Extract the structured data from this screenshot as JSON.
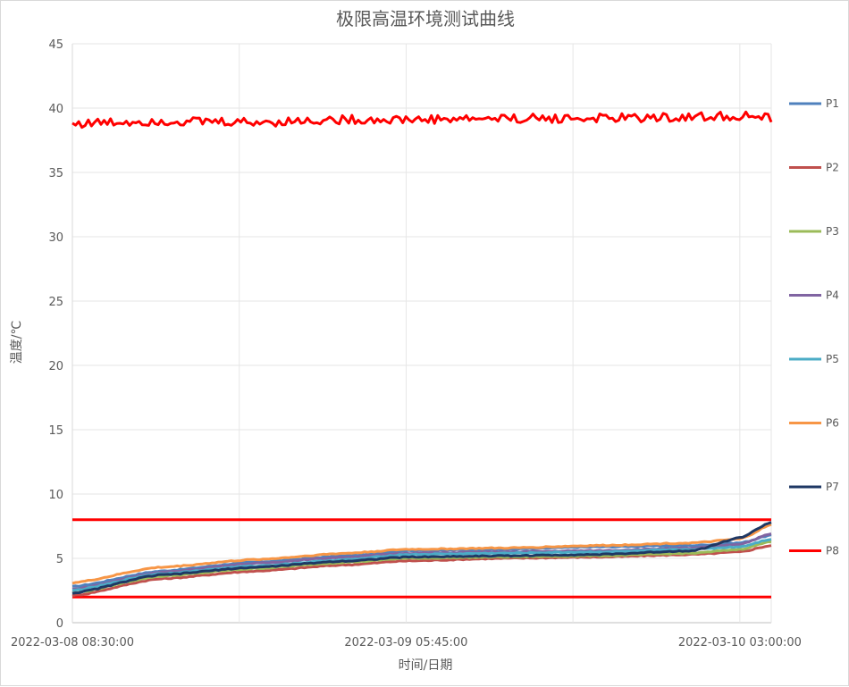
{
  "chart_data": {
    "type": "line",
    "title": "极限高温环境测试曲线",
    "xlabel": "时间/日期",
    "ylabel": "温度/℃",
    "ylim": [
      0,
      45
    ],
    "yticks": [
      0,
      5,
      10,
      15,
      20,
      25,
      30,
      35,
      40,
      45
    ],
    "xlim": [
      "2022-03-08 08:30:00",
      "2022-03-10 05:00:00"
    ],
    "xticks": [
      "2022-03-08 08:30:00",
      "2022-03-09 05:45:00",
      "2022-03-10 03:00:00"
    ],
    "grid": true,
    "legend_position": "right",
    "reference_lines": [
      {
        "value": 8,
        "color": "#ff0000"
      },
      {
        "value": 2,
        "color": "#ff0000"
      }
    ],
    "x": [
      "2022-03-08 08:30:00",
      "2022-03-08 14:00:00",
      "2022-03-08 20:00:00",
      "2022-03-09 02:00:00",
      "2022-03-09 05:45:00",
      "2022-03-09 12:00:00",
      "2022-03-09 18:00:00",
      "2022-03-10 00:00:00",
      "2022-03-10 03:00:00",
      "2022-03-10 05:00:00"
    ],
    "series": [
      {
        "name": "P1",
        "color": "#4f81bd",
        "values": [
          2.8,
          4.0,
          4.7,
          5.2,
          5.6,
          5.7,
          5.9,
          6.0,
          6.2,
          6.8
        ]
      },
      {
        "name": "P2",
        "color": "#c0504d",
        "values": [
          2.1,
          3.4,
          4.0,
          4.5,
          4.8,
          5.0,
          5.1,
          5.3,
          5.5,
          6.0
        ]
      },
      {
        "name": "P3",
        "color": "#9bbb59",
        "values": [
          2.3,
          3.6,
          4.2,
          4.7,
          5.0,
          5.1,
          5.2,
          5.4,
          5.7,
          6.3
        ]
      },
      {
        "name": "P4",
        "color": "#8064a2",
        "values": [
          2.6,
          3.9,
          4.6,
          5.1,
          5.4,
          5.5,
          5.6,
          5.8,
          6.1,
          6.9
        ]
      },
      {
        "name": "P5",
        "color": "#4bacc6",
        "values": [
          2.5,
          3.8,
          4.4,
          4.9,
          5.3,
          5.4,
          5.5,
          5.7,
          5.9,
          6.5
        ]
      },
      {
        "name": "P6",
        "color": "#f79646",
        "values": [
          3.1,
          4.3,
          4.9,
          5.4,
          5.7,
          5.8,
          6.0,
          6.2,
          6.5,
          7.6
        ]
      },
      {
        "name": "P7",
        "color": "#1f3864",
        "values": [
          2.3,
          3.7,
          4.3,
          4.8,
          5.1,
          5.2,
          5.3,
          5.6,
          6.6,
          7.8
        ]
      },
      {
        "name": "P8",
        "color": "#ff0000",
        "values": [
          38.8,
          39.0,
          38.9,
          39.1,
          39.1,
          39.2,
          39.2,
          39.3,
          39.4,
          39.2
        ]
      }
    ]
  }
}
